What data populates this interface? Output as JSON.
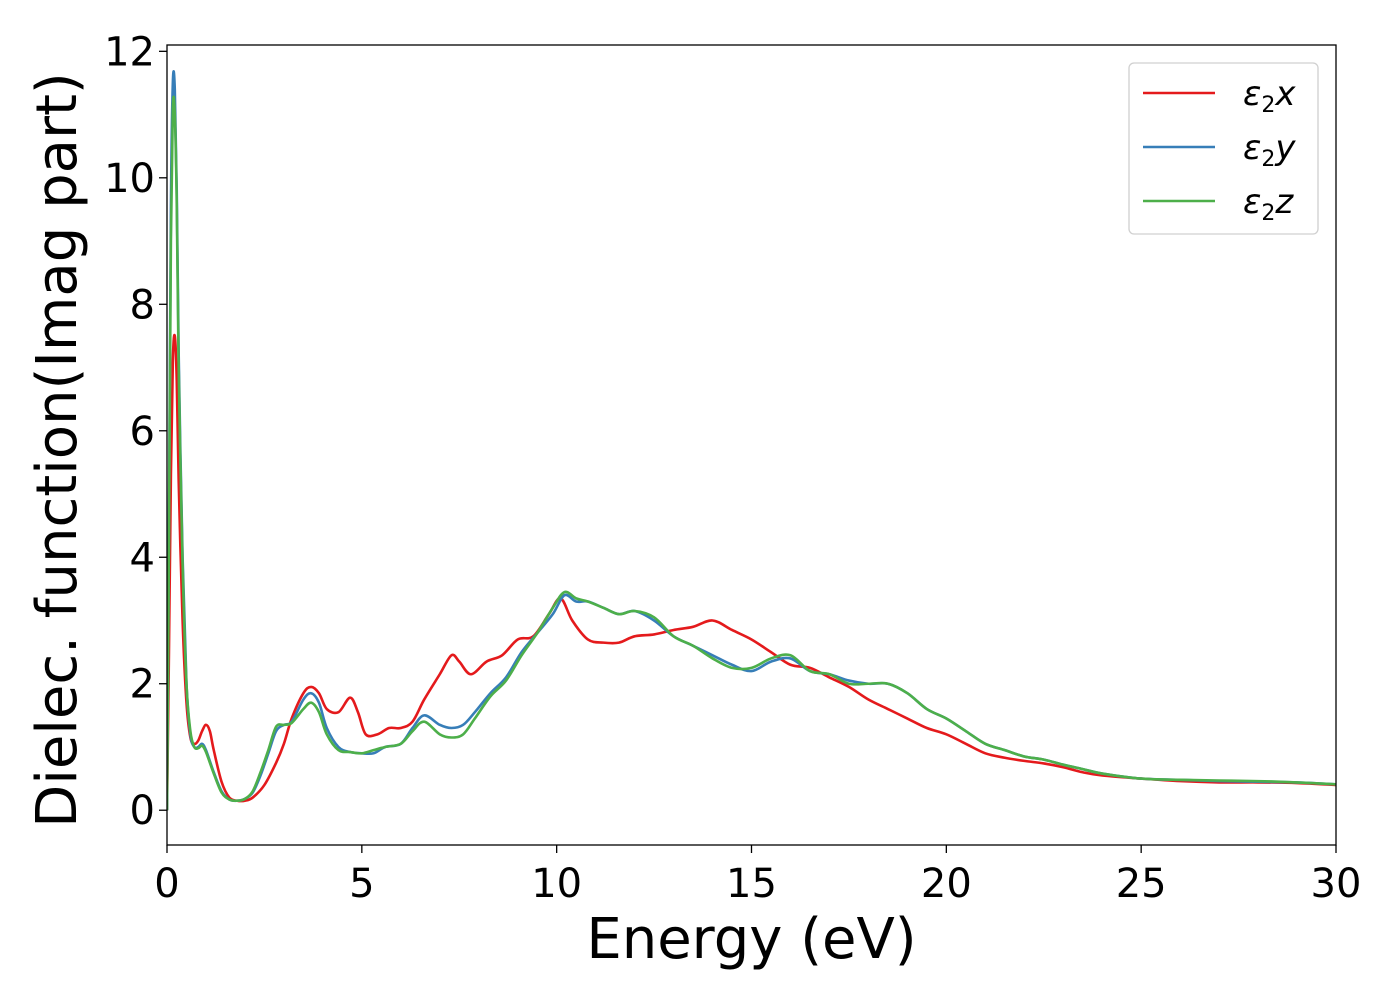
{
  "chart_data": {
    "type": "line",
    "title": "",
    "xlabel": "Energy (eV)",
    "ylabel": "Dielec. function(Imag part)",
    "xlim": [
      0,
      30
    ],
    "ylim": [
      -0.55,
      12.1
    ],
    "xticks": [
      "0",
      "5",
      "10",
      "15",
      "20",
      "25",
      "30"
    ],
    "yticks": [
      "0",
      "2",
      "4",
      "6",
      "8",
      "10",
      "12"
    ],
    "grid": false,
    "legend_position": "top-right",
    "series": [
      {
        "name": "ε2x",
        "legend": {
          "base": "ε",
          "sub": "2",
          "suffix": "x"
        },
        "color": "#e41a1c",
        "x": [
          0.0,
          0.05,
          0.1,
          0.15,
          0.2,
          0.25,
          0.3,
          0.4,
          0.5,
          0.6,
          0.7,
          0.8,
          0.9,
          1.0,
          1.1,
          1.2,
          1.4,
          1.6,
          1.8,
          2.0,
          2.2,
          2.5,
          2.8,
          3.0,
          3.2,
          3.5,
          3.7,
          3.9,
          4.1,
          4.4,
          4.7,
          4.9,
          5.1,
          5.4,
          5.7,
          6.0,
          6.3,
          6.6,
          7.0,
          7.3,
          7.5,
          7.8,
          8.2,
          8.6,
          9.0,
          9.4,
          9.8,
          10.1,
          10.4,
          10.8,
          11.2,
          11.6,
          12.0,
          12.5,
          13.0,
          13.5,
          14.0,
          14.5,
          15.0,
          15.5,
          16.0,
          16.5,
          17.0,
          17.5,
          18.0,
          18.5,
          19.0,
          19.5,
          20.0,
          20.5,
          21.0,
          21.5,
          22.0,
          22.5,
          23.0,
          23.5,
          24.0,
          25.0,
          26.0,
          27.0,
          28.0,
          29.0,
          30.0
        ],
        "y": [
          0.0,
          2.5,
          5.3,
          7.1,
          7.5,
          6.8,
          5.2,
          3.0,
          1.7,
          1.15,
          1.05,
          1.1,
          1.25,
          1.35,
          1.25,
          0.95,
          0.45,
          0.2,
          0.15,
          0.15,
          0.2,
          0.4,
          0.75,
          1.05,
          1.45,
          1.85,
          1.95,
          1.85,
          1.6,
          1.55,
          1.78,
          1.55,
          1.2,
          1.2,
          1.3,
          1.3,
          1.4,
          1.75,
          2.15,
          2.45,
          2.35,
          2.15,
          2.35,
          2.45,
          2.7,
          2.75,
          3.1,
          3.35,
          3.0,
          2.7,
          2.65,
          2.65,
          2.75,
          2.78,
          2.85,
          2.9,
          3.0,
          2.85,
          2.7,
          2.5,
          2.3,
          2.25,
          2.1,
          1.95,
          1.75,
          1.6,
          1.45,
          1.3,
          1.2,
          1.05,
          0.9,
          0.83,
          0.78,
          0.74,
          0.68,
          0.6,
          0.55,
          0.5,
          0.46,
          0.44,
          0.44,
          0.43,
          0.4
        ]
      },
      {
        "name": "ε2y",
        "legend": {
          "base": "ε",
          "sub": "2",
          "suffix": "y"
        },
        "color": "#377eb8",
        "x": [
          0.0,
          0.05,
          0.1,
          0.15,
          0.2,
          0.25,
          0.3,
          0.4,
          0.5,
          0.6,
          0.7,
          0.8,
          0.9,
          1.0,
          1.2,
          1.4,
          1.6,
          1.8,
          2.0,
          2.2,
          2.4,
          2.6,
          2.8,
          3.0,
          3.2,
          3.5,
          3.7,
          3.9,
          4.1,
          4.4,
          4.7,
          5.0,
          5.3,
          5.6,
          6.0,
          6.3,
          6.6,
          7.0,
          7.3,
          7.6,
          7.9,
          8.3,
          8.7,
          9.1,
          9.5,
          9.9,
          10.2,
          10.5,
          10.8,
          11.2,
          11.6,
          12.0,
          12.5,
          13.0,
          13.5,
          14.0,
          14.5,
          15.0,
          15.5,
          16.0,
          16.5,
          17.0,
          17.5,
          18.0,
          18.5,
          19.0,
          19.5,
          20.0,
          20.5,
          21.0,
          21.5,
          22.0,
          22.5,
          23.0,
          23.5,
          24.0,
          25.0,
          26.0,
          27.0,
          28.0,
          29.0,
          30.0
        ],
        "y": [
          0.0,
          4.5,
          9.5,
          11.5,
          11.4,
          9.8,
          7.2,
          4.0,
          2.0,
          1.2,
          1.0,
          1.0,
          1.05,
          0.95,
          0.6,
          0.3,
          0.17,
          0.15,
          0.18,
          0.28,
          0.55,
          0.9,
          1.25,
          1.35,
          1.4,
          1.75,
          1.85,
          1.7,
          1.3,
          1.0,
          0.92,
          0.9,
          0.9,
          1.0,
          1.05,
          1.3,
          1.5,
          1.35,
          1.3,
          1.35,
          1.55,
          1.85,
          2.1,
          2.5,
          2.8,
          3.1,
          3.4,
          3.3,
          3.3,
          3.2,
          3.1,
          3.15,
          3.0,
          2.75,
          2.6,
          2.45,
          2.3,
          2.2,
          2.35,
          2.4,
          2.2,
          2.15,
          2.05,
          2.0,
          2.0,
          1.85,
          1.6,
          1.45,
          1.25,
          1.05,
          0.95,
          0.85,
          0.8,
          0.72,
          0.65,
          0.58,
          0.5,
          0.48,
          0.46,
          0.45,
          0.44,
          0.41
        ]
      },
      {
        "name": "ε2z",
        "legend": {
          "base": "ε",
          "sub": "2",
          "suffix": "z"
        },
        "color": "#4daf4a",
        "x": [
          0.0,
          0.05,
          0.1,
          0.15,
          0.2,
          0.25,
          0.3,
          0.4,
          0.5,
          0.6,
          0.7,
          0.8,
          0.9,
          1.0,
          1.2,
          1.4,
          1.6,
          1.8,
          2.0,
          2.2,
          2.4,
          2.6,
          2.8,
          3.0,
          3.2,
          3.5,
          3.7,
          3.9,
          4.1,
          4.4,
          4.7,
          5.0,
          5.3,
          5.6,
          6.0,
          6.3,
          6.6,
          7.0,
          7.3,
          7.6,
          7.9,
          8.3,
          8.7,
          9.1,
          9.5,
          9.9,
          10.2,
          10.5,
          10.8,
          11.2,
          11.6,
          12.0,
          12.5,
          13.0,
          13.5,
          14.0,
          14.5,
          15.0,
          15.5,
          16.0,
          16.5,
          17.0,
          17.5,
          18.0,
          18.5,
          19.0,
          19.5,
          20.0,
          20.5,
          21.0,
          21.5,
          22.0,
          22.5,
          23.0,
          23.5,
          24.0,
          25.0,
          26.0,
          27.0,
          28.0,
          29.0,
          30.0
        ],
        "y": [
          0.0,
          4.2,
          9.0,
          11.1,
          11.0,
          9.6,
          7.0,
          3.9,
          2.0,
          1.25,
          1.0,
          0.98,
          1.02,
          0.92,
          0.58,
          0.28,
          0.17,
          0.15,
          0.18,
          0.3,
          0.6,
          0.95,
          1.32,
          1.35,
          1.38,
          1.6,
          1.7,
          1.55,
          1.2,
          0.95,
          0.92,
          0.9,
          0.95,
          1.0,
          1.05,
          1.25,
          1.4,
          1.2,
          1.15,
          1.2,
          1.45,
          1.8,
          2.05,
          2.45,
          2.8,
          3.2,
          3.45,
          3.35,
          3.3,
          3.2,
          3.1,
          3.15,
          3.05,
          2.75,
          2.6,
          2.4,
          2.25,
          2.25,
          2.4,
          2.45,
          2.2,
          2.15,
          2.0,
          2.0,
          2.0,
          1.85,
          1.6,
          1.45,
          1.25,
          1.05,
          0.95,
          0.85,
          0.8,
          0.72,
          0.65,
          0.58,
          0.5,
          0.48,
          0.47,
          0.46,
          0.44,
          0.41
        ]
      }
    ]
  }
}
